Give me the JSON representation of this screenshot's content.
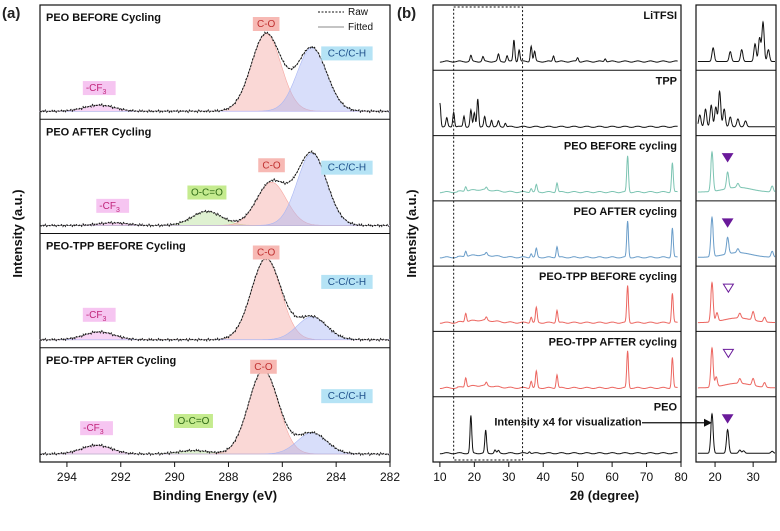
{
  "panel_a_label": "(a)",
  "panel_b_label": "(b)",
  "chart_data": [
    {
      "type": "line",
      "panel": "(a)",
      "xlabel": "Binding Energy (eV)",
      "ylabel": "Intensity (a.u.)",
      "xlim": [
        295,
        282
      ],
      "xticks": [
        294,
        292,
        290,
        288,
        286,
        284,
        282
      ],
      "legend": {
        "placement": "top-right",
        "raw": "Raw",
        "fitted": "Fitted"
      },
      "cf3_label": "-CF",
      "cf3_sub": "3",
      "subplots": [
        {
          "title": "PEO BEFORE Cycling",
          "peaks": [
            {
              "label": "-CF3",
              "center": 292.8,
              "height": 0.07,
              "color": "#ef9fe8"
            },
            {
              "label": "C-O",
              "center": 286.6,
              "height": 0.88,
              "color": "#f5a8a3"
            },
            {
              "label": "C-C/C-H",
              "center": 284.9,
              "height": 0.72,
              "color": "#a9b6f3"
            }
          ]
        },
        {
          "title": "PEO AFTER Cycling",
          "peaks": [
            {
              "label": "-CF3",
              "center": 292.3,
              "height": 0.03,
              "color": "#ef9fe8"
            },
            {
              "label": "O-C=O",
              "center": 288.8,
              "height": 0.16,
              "color": "#b8e09a"
            },
            {
              "label": "C-O",
              "center": 286.4,
              "height": 0.49,
              "color": "#f5a8a3"
            },
            {
              "label": "C-C/C-H",
              "center": 284.9,
              "height": 0.82,
              "color": "#a9b6f3"
            }
          ]
        },
        {
          "title": "PEO-TPP BEFORE Cycling",
          "peaks": [
            {
              "label": "-CF3",
              "center": 292.8,
              "height": 0.09,
              "color": "#ef9fe8"
            },
            {
              "label": "C-O",
              "center": 286.6,
              "height": 0.92,
              "color": "#f5a8a3"
            },
            {
              "label": "C-C/C-H",
              "center": 284.9,
              "height": 0.26,
              "color": "#a9b6f3"
            }
          ]
        },
        {
          "title": "PEO-TPP AFTER Cycling",
          "peaks": [
            {
              "label": "-CF3",
              "center": 292.9,
              "height": 0.1,
              "color": "#ef9fe8"
            },
            {
              "label": "O-C=O",
              "center": 289.3,
              "height": 0.04,
              "color": "#b8e09a"
            },
            {
              "label": "C-O",
              "center": 286.7,
              "height": 0.95,
              "color": "#f5a8a3"
            },
            {
              "label": "C-C/C-H",
              "center": 284.9,
              "height": 0.24,
              "color": "#a9b6f3"
            }
          ]
        }
      ]
    },
    {
      "type": "line",
      "panel": "(b)",
      "xlabel": "2θ (degree)",
      "ylabel": "Intensity (a.u.)",
      "xlim": [
        8,
        80
      ],
      "xticks": [
        10,
        20,
        30,
        40,
        50,
        60,
        70,
        80
      ],
      "inset_xlim": [
        15,
        36
      ],
      "inset_xticks": [
        20,
        30
      ],
      "dotted_range": [
        14,
        34
      ],
      "annotation": "Intensity x4 for visualization",
      "series": [
        {
          "name": "LiTFSI",
          "color": "#111111",
          "peaks": [
            [
              19,
              0.15
            ],
            [
              22.5,
              0.12
            ],
            [
              27,
              0.18
            ],
            [
              29.5,
              0.15
            ],
            [
              31.5,
              0.55
            ],
            [
              33,
              0.3
            ],
            [
              36.5,
              0.4
            ],
            [
              37.5,
              0.25
            ],
            [
              43,
              0.15
            ],
            [
              50,
              0.1
            ],
            [
              58,
              0.08
            ]
          ],
          "inset": [
            [
              19.5,
              0.35
            ],
            [
              24,
              0.25
            ],
            [
              27,
              0.3
            ],
            [
              30.5,
              0.45
            ],
            [
              31.7,
              0.6
            ],
            [
              32.6,
              1.0
            ],
            [
              34,
              0.3
            ]
          ],
          "marker": null
        },
        {
          "name": "TPP",
          "color": "#111111",
          "peaks": [
            [
              10,
              0.62
            ],
            [
              12,
              0.22
            ],
            [
              14,
              0.38
            ],
            [
              17,
              0.28
            ],
            [
              19,
              0.42
            ],
            [
              20,
              0.35
            ],
            [
              21,
              0.72
            ],
            [
              23,
              0.25
            ],
            [
              25,
              0.18
            ],
            [
              27,
              0.14
            ],
            [
              29,
              0.1
            ]
          ],
          "inset": [
            [
              16,
              0.3
            ],
            [
              17.5,
              0.45
            ],
            [
              19,
              0.55
            ],
            [
              20.2,
              0.5
            ],
            [
              21.2,
              0.9
            ],
            [
              22.4,
              0.45
            ],
            [
              24,
              0.25
            ],
            [
              26,
              0.2
            ],
            [
              28,
              0.15
            ]
          ],
          "marker": null
        },
        {
          "name": "PEO BEFORE cycling",
          "color": "#7cc4b2",
          "peaks": [
            [
              17.5,
              0.12
            ],
            [
              23.5,
              0.06
            ],
            [
              36.5,
              0.1
            ],
            [
              38,
              0.18
            ],
            [
              44,
              0.24
            ],
            [
              64.5,
              0.92
            ],
            [
              77.5,
              0.75
            ]
          ],
          "inset": [
            [
              19.2,
              1.0
            ],
            [
              23.3,
              0.42
            ],
            [
              26,
              0.1
            ],
            [
              35,
              0.15
            ]
          ],
          "marker": {
            "x": 23.3,
            "filled": true
          }
        },
        {
          "name": "PEO AFTER cycling",
          "color": "#6a9dc9",
          "peaks": [
            [
              17.5,
              0.14
            ],
            [
              23.5,
              0.06
            ],
            [
              36.5,
              0.1
            ],
            [
              38,
              0.22
            ],
            [
              44,
              0.28
            ],
            [
              64.5,
              0.92
            ],
            [
              77.5,
              0.75
            ]
          ],
          "inset": [
            [
              19.2,
              1.0
            ],
            [
              23.3,
              0.42
            ],
            [
              26,
              0.1
            ],
            [
              35,
              0.15
            ]
          ],
          "marker": {
            "x": 23.3,
            "filled": true
          }
        },
        {
          "name": "PEO-TPP BEFORE cycling",
          "color": "#ec6660",
          "peaks": [
            [
              17.5,
              0.22
            ],
            [
              23.5,
              0.08
            ],
            [
              36.5,
              0.15
            ],
            [
              38,
              0.38
            ],
            [
              44,
              0.32
            ],
            [
              64.5,
              0.94
            ],
            [
              77.5,
              0.75
            ]
          ],
          "inset": [
            [
              19.2,
              1.0
            ],
            [
              20.5,
              0.22
            ],
            [
              26.5,
              0.12
            ],
            [
              30,
              0.22
            ],
            [
              33,
              0.12
            ]
          ],
          "marker": {
            "x": 23.5,
            "filled": false
          }
        },
        {
          "name": "PEO-TPP AFTER cycling",
          "color": "#ec6660",
          "peaks": [
            [
              17.5,
              0.24
            ],
            [
              23.5,
              0.08
            ],
            [
              36.5,
              0.18
            ],
            [
              38,
              0.42
            ],
            [
              44,
              0.34
            ],
            [
              64.5,
              0.94
            ],
            [
              77.5,
              0.78
            ]
          ],
          "inset": [
            [
              19.2,
              1.0
            ],
            [
              20.3,
              0.25
            ],
            [
              26.5,
              0.12
            ],
            [
              30,
              0.18
            ],
            [
              33,
              0.12
            ]
          ],
          "marker": {
            "x": 23.5,
            "filled": false
          }
        },
        {
          "name": "PEO",
          "color": "#111111",
          "peaks": [
            [
              19,
              0.95
            ],
            [
              23.3,
              0.58
            ],
            [
              26,
              0.08
            ],
            [
              27,
              0.06
            ],
            [
              36,
              0.05
            ]
          ],
          "inset": [
            [
              19.2,
              1.0
            ],
            [
              23.3,
              0.6
            ],
            [
              26.5,
              0.08
            ],
            [
              27.5,
              0.06
            ],
            [
              35,
              0.05
            ]
          ],
          "marker": {
            "x": 23.3,
            "filled": true
          }
        }
      ]
    }
  ]
}
